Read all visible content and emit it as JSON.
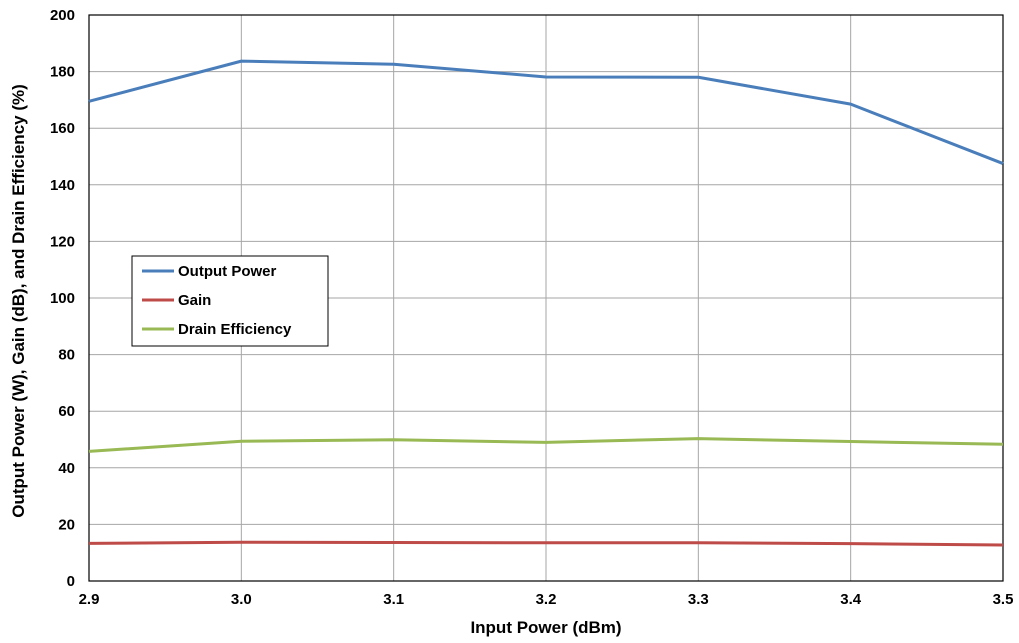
{
  "chart_data": {
    "type": "line",
    "xlabel": "Input Power (dBm)",
    "ylabel": "Output Power (W), Gain (dB), and Drain Efficiency (%)",
    "xlim": [
      2.9,
      3.5
    ],
    "ylim": [
      0,
      200
    ],
    "x_ticks": [
      "2.9",
      "3.0",
      "3.1",
      "3.2",
      "3.3",
      "3.4",
      "3.5"
    ],
    "y_ticks": [
      "0",
      "20",
      "40",
      "60",
      "80",
      "100",
      "120",
      "140",
      "160",
      "180",
      "200"
    ],
    "x": [
      2.9,
      3.0,
      3.1,
      3.2,
      3.3,
      3.4,
      3.5
    ],
    "grid": true,
    "legend_position": "middle-left",
    "series": [
      {
        "name": "Output Power",
        "color": "#4a7ebb",
        "values": [
          169.5,
          183.7,
          182.6,
          178.1,
          178.0,
          168.5,
          147.5
        ]
      },
      {
        "name": "Gain",
        "color": "#be4b48",
        "values": [
          13.3,
          13.7,
          13.6,
          13.5,
          13.5,
          13.2,
          12.7
        ]
      },
      {
        "name": "Drain Efficiency",
        "color": "#98b954",
        "values": [
          45.8,
          49.4,
          49.9,
          49.0,
          50.3,
          49.3,
          48.3
        ]
      }
    ]
  }
}
